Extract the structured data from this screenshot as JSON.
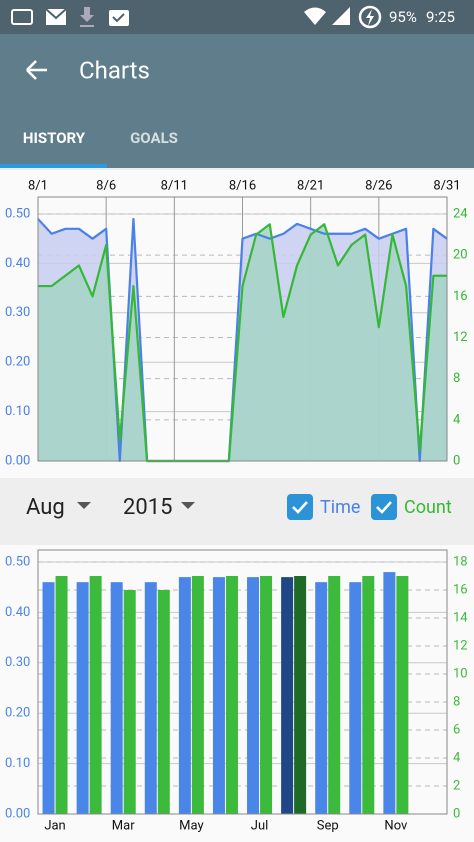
{
  "status_bar": {
    "battery": "95%",
    "time": "9:25"
  },
  "app_bar": {
    "title": "Charts"
  },
  "tabs": {
    "items": [
      "HISTORY",
      "GOALS"
    ],
    "selected": 0
  },
  "filters": {
    "month": "Aug",
    "year": "2015"
  },
  "chart_data": [
    {
      "type": "line",
      "area": true,
      "grid": true,
      "categories": [
        "8/1",
        null,
        null,
        null,
        null,
        "8/6",
        null,
        null,
        null,
        null,
        "8/11",
        null,
        null,
        null,
        null,
        "8/16",
        null,
        null,
        null,
        null,
        "8/21",
        null,
        null,
        null,
        null,
        "8/26",
        null,
        null,
        null,
        null,
        "8/31"
      ],
      "series": [
        {
          "name": "Time",
          "color": "#4a80e8",
          "fill": "#c5cdf0",
          "checked": true,
          "values": [
            0.49,
            0.46,
            0.47,
            0.47,
            0.45,
            0.47,
            0,
            0.49,
            0,
            0,
            0,
            0,
            0,
            0,
            0,
            0.45,
            0.46,
            0.45,
            0.46,
            0.48,
            0.47,
            0.46,
            0.46,
            0.46,
            0.47,
            0.45,
            0.46,
            0.47,
            0,
            0.47,
            0.45
          ]
        },
        {
          "name": "Count",
          "color": "#35b835",
          "fill": "#a3d3c6",
          "axis": "y2",
          "checked": true,
          "values": [
            17,
            17,
            18,
            19,
            16,
            21,
            2,
            17,
            0,
            0,
            0,
            0,
            0,
            0,
            0,
            17,
            22,
            23,
            14,
            19,
            22,
            23,
            19,
            21,
            22,
            13,
            22,
            17,
            1,
            18,
            18
          ]
        }
      ],
      "ylim": [
        0,
        0.5
      ],
      "yticks": [
        {
          "value": 0,
          "label": "0.00"
        },
        {
          "value": 0.1,
          "label": "0.10"
        },
        {
          "value": 0.2,
          "label": "0.20"
        },
        {
          "value": 0.3,
          "label": "0.30"
        },
        {
          "value": 0.4,
          "label": "0.40"
        },
        {
          "value": 0.5,
          "label": "0.50"
        }
      ],
      "y2lim": [
        0,
        24
      ],
      "y2ticks": [
        0,
        4,
        8,
        12,
        16,
        20,
        24
      ]
    },
    {
      "type": "bar",
      "grid": true,
      "highlight": 7,
      "categories": [
        "Jan",
        null,
        "Mar",
        null,
        "May",
        null,
        "Jul",
        null,
        "Sep",
        null,
        "Nov",
        null
      ],
      "series": [
        {
          "color": "#4a86e8",
          "highlight_color": "#1f4788",
          "values": [
            0.46,
            0.46,
            0.46,
            0.46,
            0.47,
            0.47,
            0.47,
            0.47,
            0.46,
            0.46,
            0.48,
            null
          ]
        },
        {
          "color": "#3cba3c",
          "highlight_color": "#1d6b27",
          "axis": "y2",
          "values": [
            17,
            17,
            16,
            16,
            17,
            17,
            17,
            17,
            17,
            17,
            17,
            null
          ]
        }
      ],
      "ylim": [
        0,
        0.5
      ],
      "yticks": [
        {
          "value": 0,
          "label": "0.00"
        },
        {
          "value": 0.1,
          "label": "0.10"
        },
        {
          "value": 0.2,
          "label": "0.20"
        },
        {
          "value": 0.3,
          "label": "0.30"
        },
        {
          "value": 0.4,
          "label": "0.40"
        },
        {
          "value": 0.5,
          "label": "0.50"
        }
      ],
      "y2lim": [
        0,
        18
      ],
      "y2ticks": [
        0,
        2,
        4,
        6,
        8,
        10,
        12,
        14,
        16,
        18
      ]
    }
  ]
}
